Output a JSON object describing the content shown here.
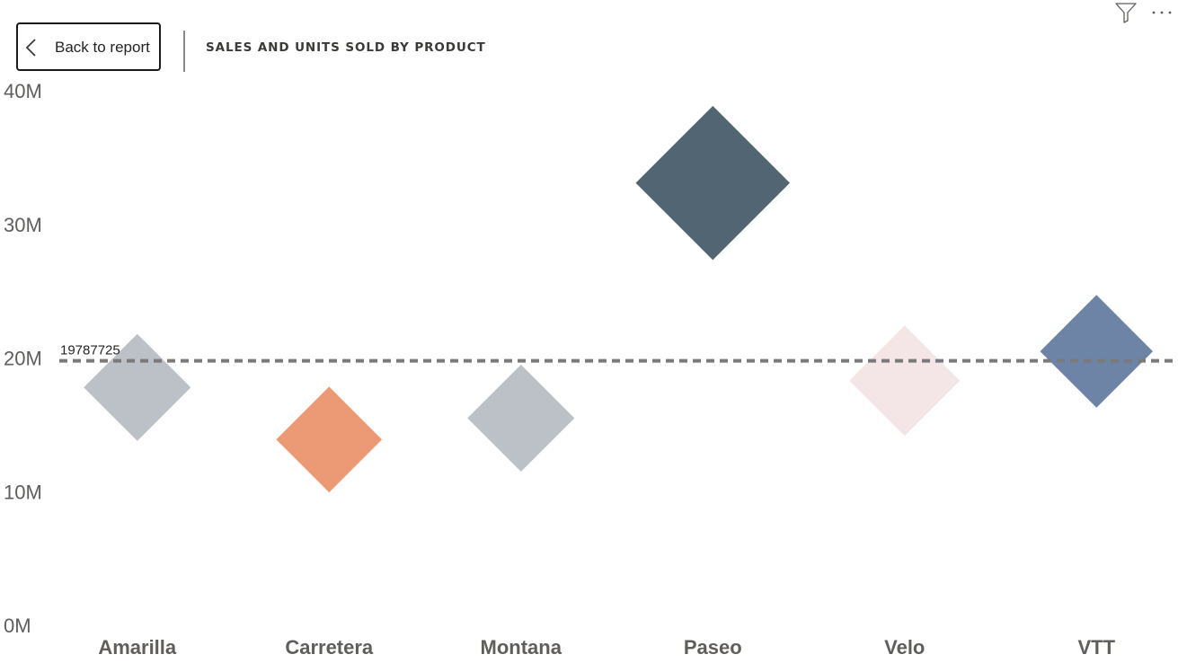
{
  "header": {
    "back_label": "Back to report",
    "title": "SALES AND UNITS SOLD BY PRODUCT"
  },
  "icons": {
    "back": "chevron-left-icon",
    "filter": "filter-icon",
    "more": "more-options-icon"
  },
  "chart_data": {
    "type": "scatter",
    "marker": "diamond",
    "categories": [
      "Amarilla",
      "Carretera",
      "Montana",
      "Paseo",
      "Velo",
      "VTT"
    ],
    "values": [
      17800000,
      13900000,
      15500000,
      33100000,
      18300000,
      20500000
    ],
    "marker_scale": [
      0.93,
      0.92,
      0.93,
      1.34,
      0.96,
      0.98
    ],
    "colors": [
      "#bcc1c8",
      "#ec9a76",
      "#bcc1c8",
      "#526572",
      "#f4e6e6",
      "#6e84a6"
    ],
    "yticks": [
      "0M",
      "10M",
      "20M",
      "30M",
      "40M"
    ],
    "ylim": [
      0,
      40000000
    ],
    "reference_line": {
      "value": 19787725,
      "label": "19787725"
    }
  }
}
